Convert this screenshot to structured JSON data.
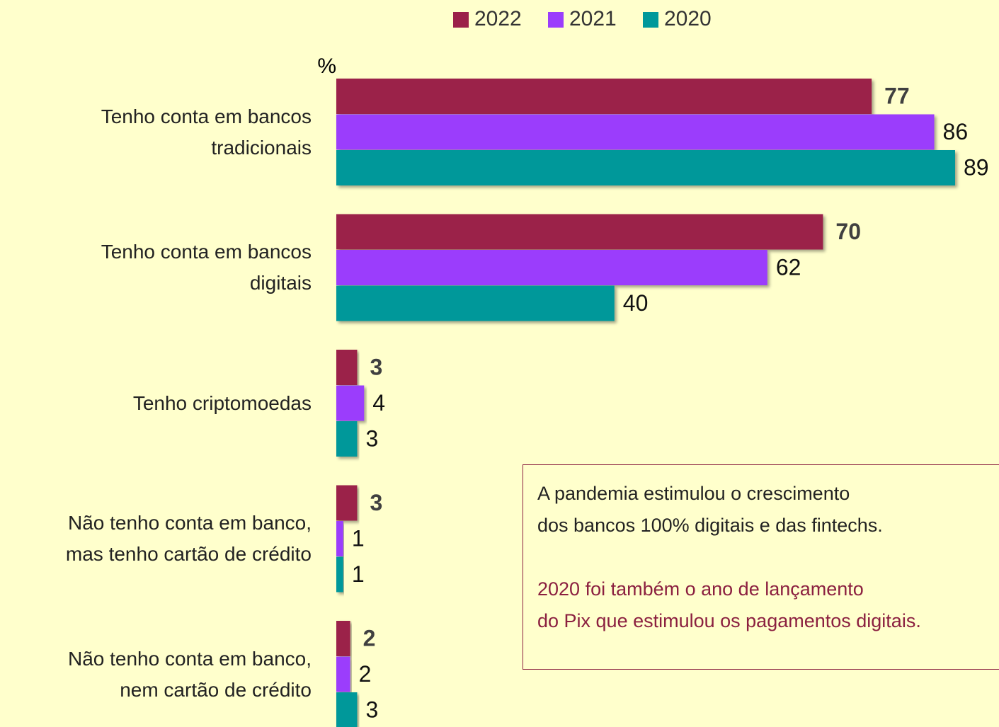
{
  "chart_data": {
    "type": "bar",
    "categories": [
      "Tenho conta em bancos\ntradicionais",
      "Tenho conta em bancos\ndigitais",
      "Tenho criptomoedas",
      "Não tenho conta em banco,\nmas tenho cartão de crédito",
      "Não tenho conta em banco,\nnem cartão de crédito"
    ],
    "series": [
      {
        "name": "2022",
        "color": "#9b2149",
        "values": [
          77,
          70,
          3,
          3,
          2
        ]
      },
      {
        "name": "2021",
        "color": "#9b3dfc",
        "values": [
          86,
          62,
          4,
          1,
          2
        ]
      },
      {
        "name": "2020",
        "color": "#00989a",
        "values": [
          89,
          40,
          3,
          1,
          3
        ]
      }
    ],
    "axis_label": "%",
    "legend": "top",
    "annotations": [
      "A pandemia estimulou o crescimento\ndos bancos 100% digitais e das fintechs.",
      "2020 foi também o ano de lançamento\ndo Pix que estimulou os pagamentos digitais."
    ]
  }
}
